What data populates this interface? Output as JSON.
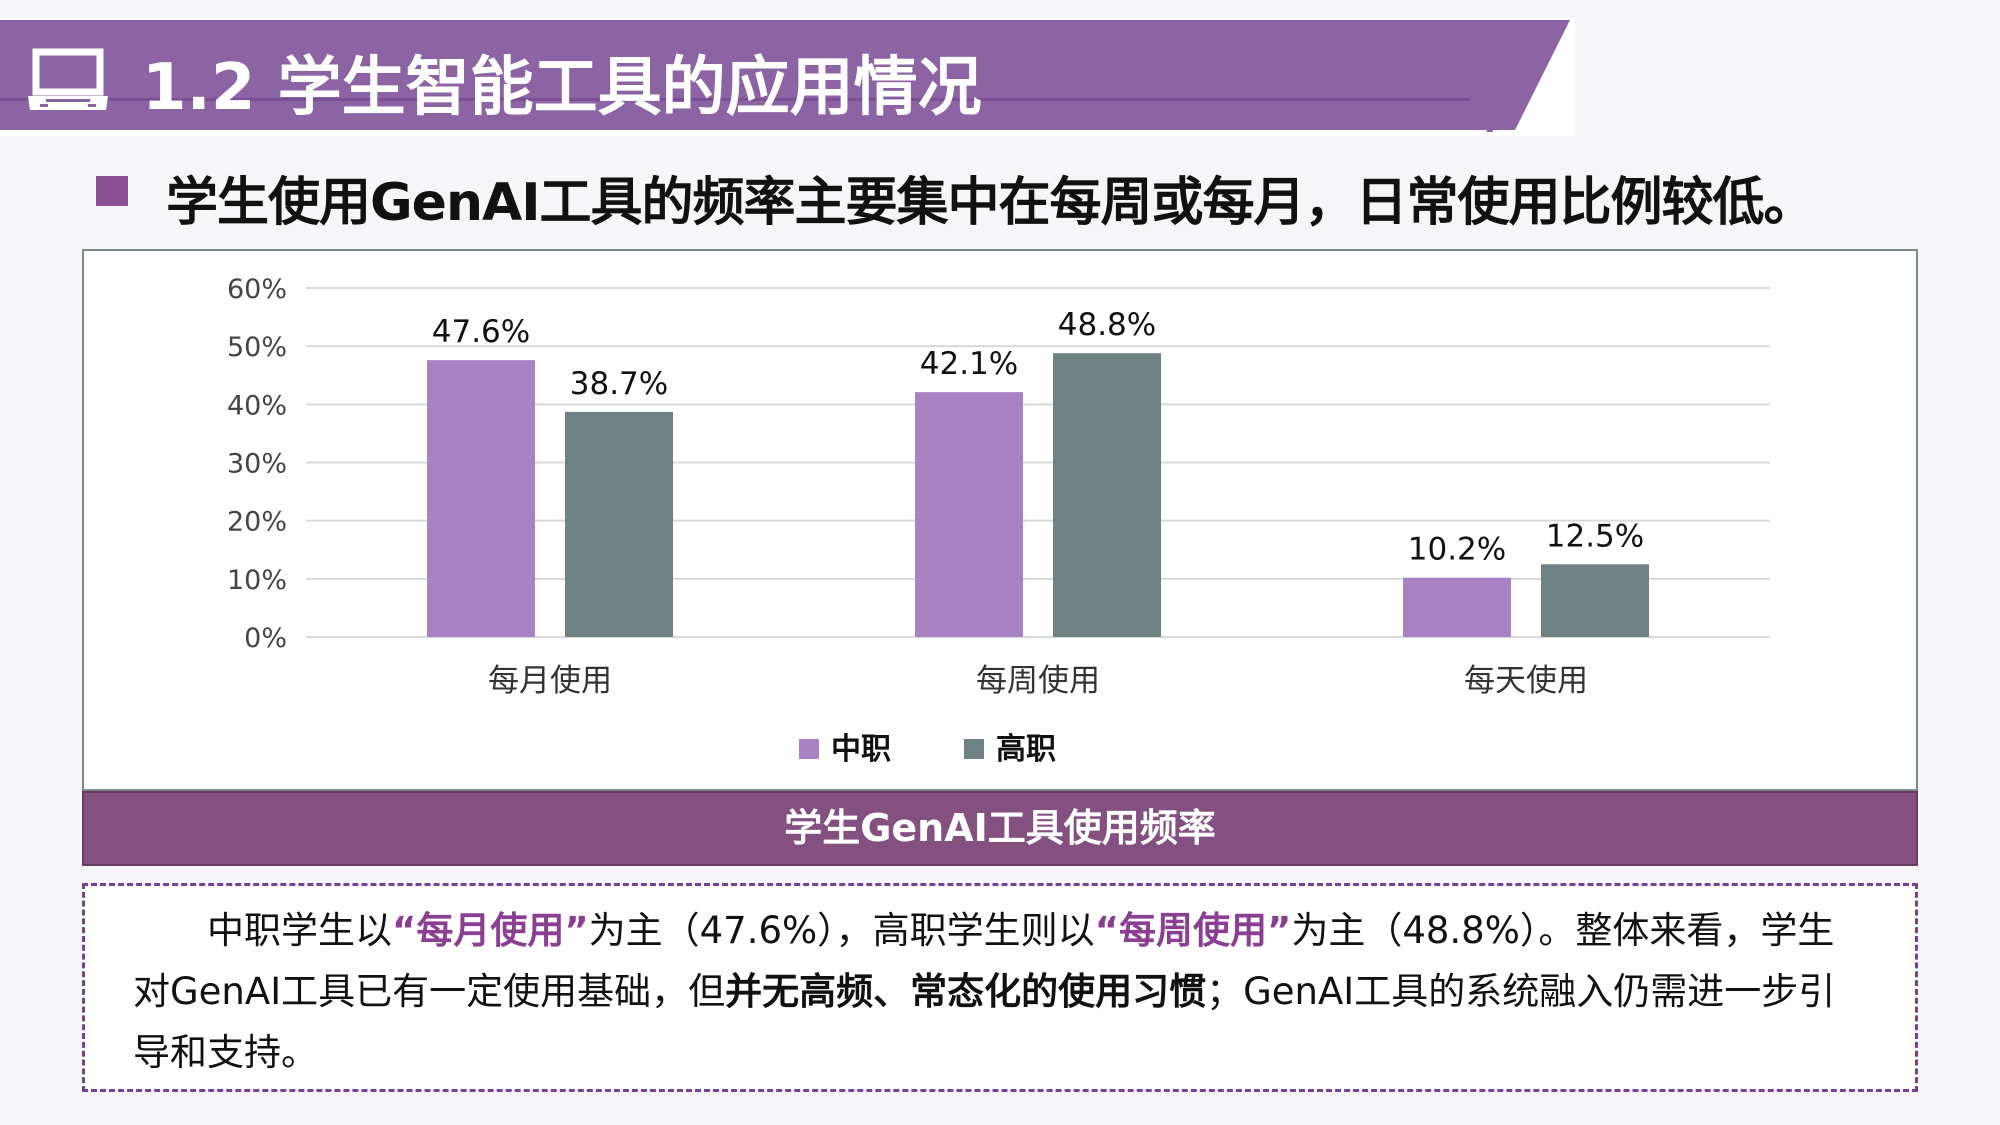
{
  "header": {
    "title": "1.2 学生智能工具的应用情况",
    "icon": "laptop-icon",
    "color": "#8c64a4"
  },
  "subtitle": "学生使用GenAI工具的频率主要集中在每周或每月，日常使用比例较低。",
  "caption": "学生GenAI工具使用频率",
  "note": {
    "p1": "中职学生以",
    "h1": "“每月使用”",
    "p2": "为主（47.6%），高职学生则以",
    "h2": "“每周使用”",
    "p3": "为主（48.8%）。整体来看，学生对GenAI工具已有一定使用基础，但",
    "b1": "并无高频、常态化的使用习惯",
    "p4": "；GenAI工具的系统融入仍需进一步引导和支持。"
  },
  "chart_data": {
    "type": "bar",
    "categories": [
      "每月使用",
      "每周使用",
      "每天使用"
    ],
    "series": [
      {
        "name": "中职",
        "values": [
          47.6,
          42.1,
          10.2
        ],
        "color": "#a982c4"
      },
      {
        "name": "高职",
        "values": [
          38.7,
          48.8,
          12.5
        ],
        "color": "#6e8283"
      }
    ],
    "yticks": [
      "0%",
      "10%",
      "20%",
      "30%",
      "40%",
      "50%",
      "60%"
    ],
    "ylim": [
      0,
      60
    ],
    "grid": true,
    "legend": "bottom",
    "data_labels": [
      "47.6%",
      "38.7%",
      "42.1%",
      "48.8%",
      "10.2%",
      "12.5%"
    ]
  }
}
